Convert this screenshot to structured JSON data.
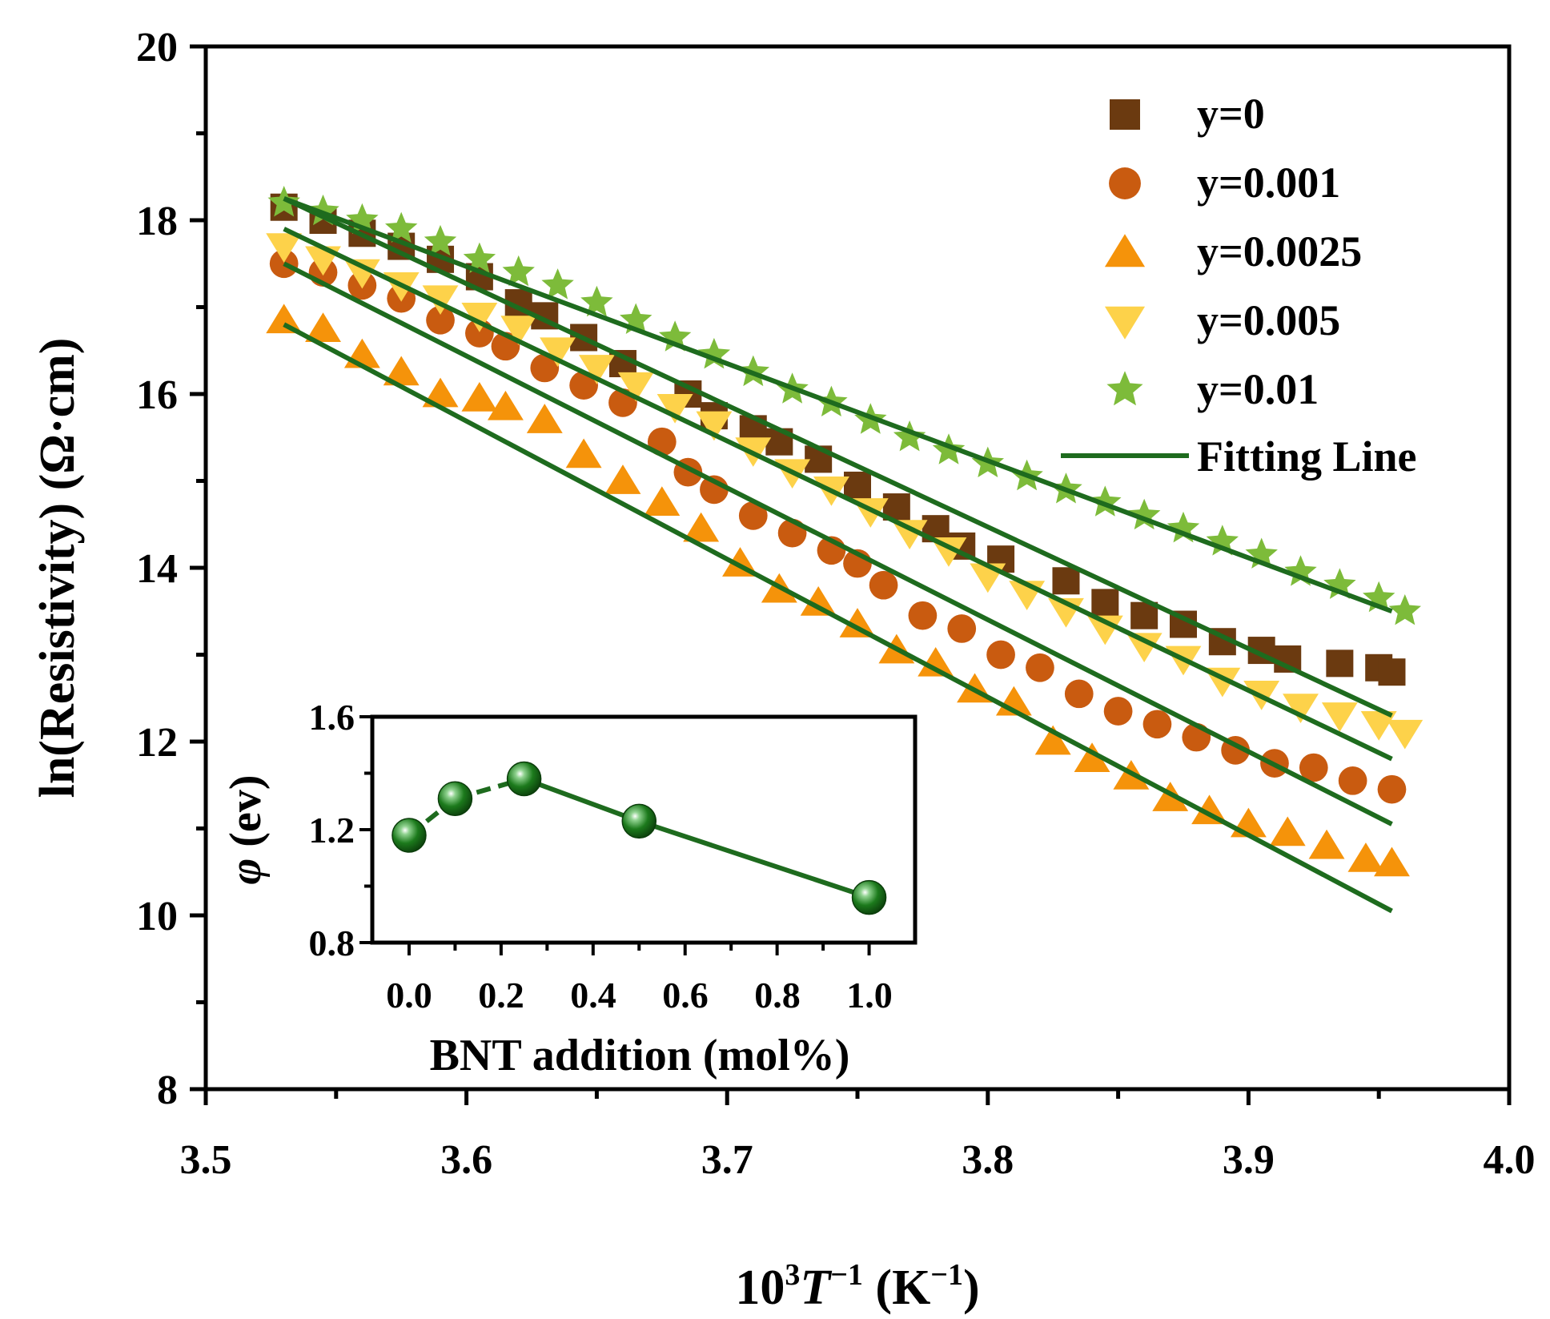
{
  "chart_data": [
    {
      "type": "scatter",
      "xlabel": "10³T⁻¹ (K⁻¹)",
      "xlabel_parts": {
        "base": "10",
        "exp1": "3",
        "var": "T",
        "exp2": "-1",
        "unit_open": " (K",
        "exp3": "-1",
        "unit_close": ")"
      },
      "ylabel": "ln(Resistivity) (Ω·cm)",
      "xlim": [
        3.5,
        4.0
      ],
      "ylim": [
        8,
        20
      ],
      "x_ticks": [
        "3.5",
        "3.6",
        "3.7",
        "3.8",
        "3.9",
        "4.0"
      ],
      "y_ticks": [
        "8",
        "10",
        "12",
        "14",
        "16",
        "18",
        "20"
      ],
      "legend_position": "top-right",
      "grid": false,
      "fit_label": "Fitting Line",
      "fit_color": "#1e6b1e",
      "series": [
        {
          "name": "y=0",
          "marker": "square",
          "color": "#6b3a10",
          "x": [
            3.53,
            3.545,
            3.56,
            3.575,
            3.59,
            3.605,
            3.62,
            3.63,
            3.645,
            3.66,
            3.685,
            3.695,
            3.71,
            3.72,
            3.735,
            3.75,
            3.765,
            3.78,
            3.79,
            3.805,
            3.83,
            3.845,
            3.86,
            3.875,
            3.89,
            3.905,
            3.915,
            3.935,
            3.95,
            3.955
          ],
          "y": [
            18.15,
            18.0,
            17.85,
            17.7,
            17.55,
            17.35,
            17.05,
            16.9,
            16.65,
            16.35,
            16.0,
            15.75,
            15.6,
            15.45,
            15.25,
            14.95,
            14.7,
            14.45,
            14.25,
            14.1,
            13.85,
            13.6,
            13.45,
            13.35,
            13.15,
            13.05,
            12.95,
            12.9,
            12.85,
            12.8
          ],
          "fit": [
            [
              3.53,
              18.25
            ],
            [
              3.955,
              12.3
            ]
          ]
        },
        {
          "name": "y=0.001",
          "marker": "circle",
          "color": "#c95b10",
          "x": [
            3.53,
            3.545,
            3.56,
            3.575,
            3.59,
            3.605,
            3.615,
            3.63,
            3.645,
            3.66,
            3.675,
            3.685,
            3.695,
            3.71,
            3.725,
            3.74,
            3.75,
            3.76,
            3.775,
            3.79,
            3.805,
            3.82,
            3.835,
            3.85,
            3.865,
            3.88,
            3.895,
            3.91,
            3.925,
            3.94,
            3.955
          ],
          "y": [
            17.5,
            17.4,
            17.25,
            17.1,
            16.85,
            16.7,
            16.55,
            16.3,
            16.1,
            15.9,
            15.45,
            15.1,
            14.9,
            14.6,
            14.4,
            14.2,
            14.05,
            13.8,
            13.45,
            13.3,
            13.0,
            12.85,
            12.55,
            12.35,
            12.2,
            12.05,
            11.9,
            11.75,
            11.7,
            11.55,
            11.45
          ],
          "fit": [
            [
              3.53,
              17.5
            ],
            [
              3.955,
              11.05
            ]
          ]
        },
        {
          "name": "y=0.0025",
          "marker": "triangle-up",
          "color": "#f5930a",
          "x": [
            3.53,
            3.545,
            3.56,
            3.575,
            3.59,
            3.605,
            3.615,
            3.63,
            3.645,
            3.66,
            3.675,
            3.69,
            3.705,
            3.72,
            3.735,
            3.75,
            3.765,
            3.78,
            3.795,
            3.81,
            3.825,
            3.84,
            3.855,
            3.87,
            3.885,
            3.9,
            3.915,
            3.93,
            3.945,
            3.955
          ],
          "y": [
            16.85,
            16.75,
            16.45,
            16.25,
            16.0,
            15.95,
            15.85,
            15.7,
            15.3,
            15.0,
            14.75,
            14.45,
            14.05,
            13.75,
            13.6,
            13.35,
            13.05,
            12.9,
            12.6,
            12.45,
            12.0,
            11.8,
            11.6,
            11.35,
            11.2,
            11.05,
            10.95,
            10.8,
            10.65,
            10.6
          ],
          "fit": [
            [
              3.53,
              16.8
            ],
            [
              3.955,
              10.05
            ]
          ]
        },
        {
          "name": "y=0.005",
          "marker": "triangle-down",
          "color": "#fdd24a",
          "x": [
            3.53,
            3.545,
            3.56,
            3.575,
            3.59,
            3.605,
            3.62,
            3.635,
            3.65,
            3.665,
            3.68,
            3.695,
            3.71,
            3.725,
            3.74,
            3.755,
            3.77,
            3.785,
            3.8,
            3.815,
            3.83,
            3.845,
            3.86,
            3.875,
            3.89,
            3.905,
            3.92,
            3.935,
            3.95,
            3.96
          ],
          "y": [
            17.7,
            17.55,
            17.4,
            17.25,
            17.1,
            16.9,
            16.75,
            16.5,
            16.3,
            16.1,
            15.85,
            15.65,
            15.35,
            15.1,
            14.9,
            14.65,
            14.4,
            14.2,
            13.9,
            13.7,
            13.5,
            13.3,
            13.1,
            12.95,
            12.7,
            12.55,
            12.4,
            12.3,
            12.2,
            12.1
          ],
          "fit": [
            [
              3.53,
              17.9
            ],
            [
              3.955,
              11.8
            ]
          ]
        },
        {
          "name": "y=0.01",
          "marker": "star",
          "color": "#7dbb3a",
          "x": [
            3.53,
            3.545,
            3.56,
            3.575,
            3.59,
            3.605,
            3.62,
            3.635,
            3.65,
            3.665,
            3.68,
            3.695,
            3.71,
            3.725,
            3.74,
            3.755,
            3.77,
            3.785,
            3.8,
            3.815,
            3.83,
            3.845,
            3.86,
            3.875,
            3.89,
            3.905,
            3.92,
            3.935,
            3.95,
            3.96
          ],
          "y": [
            18.2,
            18.1,
            18.0,
            17.9,
            17.75,
            17.55,
            17.4,
            17.25,
            17.05,
            16.85,
            16.65,
            16.45,
            16.25,
            16.05,
            15.9,
            15.7,
            15.5,
            15.35,
            15.2,
            15.05,
            14.9,
            14.75,
            14.6,
            14.45,
            14.3,
            14.15,
            13.95,
            13.8,
            13.65,
            13.5
          ],
          "fit": [
            [
              3.53,
              18.25
            ],
            [
              3.955,
              13.5
            ]
          ]
        }
      ]
    },
    {
      "type": "line",
      "role": "inset",
      "xlabel": "BNT addition (mol%)",
      "ylabel_symbol": "φ",
      "ylabel_unit": "(ev)",
      "xlim": [
        -0.08,
        1.1
      ],
      "ylim": [
        0.8,
        1.6
      ],
      "x_ticks": [
        "0.0",
        "0.2",
        "0.4",
        "0.6",
        "0.8",
        "1.0"
      ],
      "y_ticks": [
        "0.8",
        "1.2",
        "1.6"
      ],
      "color": "#1e6b1e",
      "series": [
        {
          "name": "",
          "x": [
            0.0,
            0.1,
            0.25,
            0.5,
            1.0
          ],
          "y": [
            1.18,
            1.31,
            1.38,
            1.23,
            0.96
          ]
        }
      ]
    }
  ]
}
